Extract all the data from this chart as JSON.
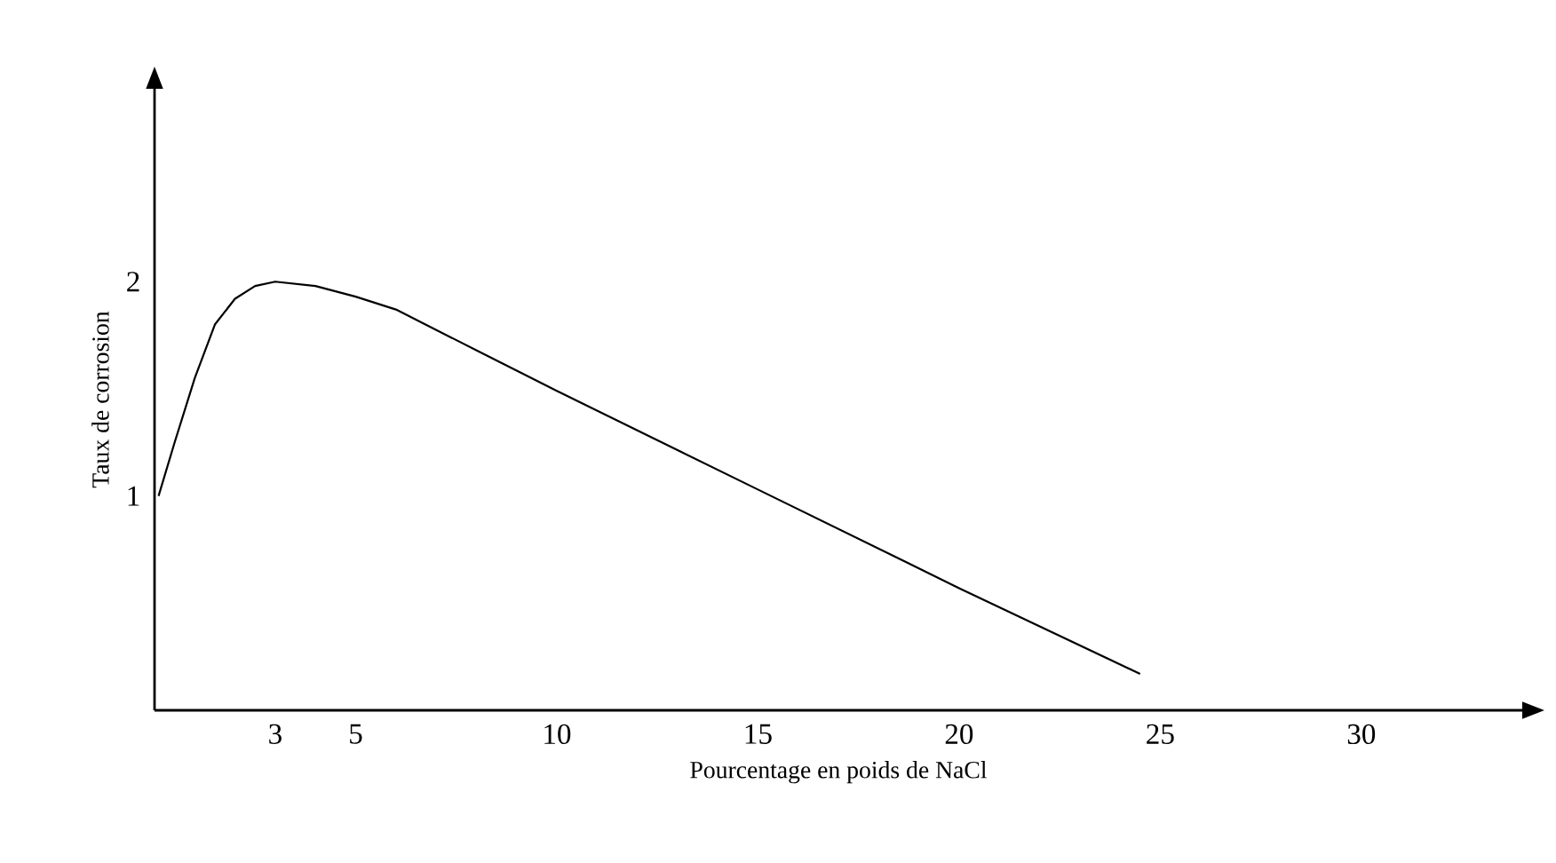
{
  "chart_data": {
    "type": "line",
    "xlabel": "Pourcentage en poids de NaCl",
    "ylabel": "Taux de corrosion",
    "x": [
      0.1,
      0.5,
      1,
      1.5,
      2,
      2.5,
      3,
      4,
      5,
      6,
      8,
      10,
      15,
      20,
      24.5
    ],
    "series": [
      {
        "color": "#000000",
        "values": [
          1.0,
          1.25,
          1.55,
          1.8,
          1.92,
          1.98,
          2.0,
          1.98,
          1.93,
          1.87,
          1.68,
          1.49,
          1.03,
          0.57,
          0.17
        ]
      }
    ],
    "xlim": [
      0,
      34
    ],
    "ylim": [
      0,
      2.9
    ],
    "xticks": [
      3,
      5,
      10,
      15,
      20,
      25,
      30
    ],
    "yticks": [
      1,
      2
    ],
    "grid": false,
    "marker": "none",
    "line_style": "solid"
  }
}
